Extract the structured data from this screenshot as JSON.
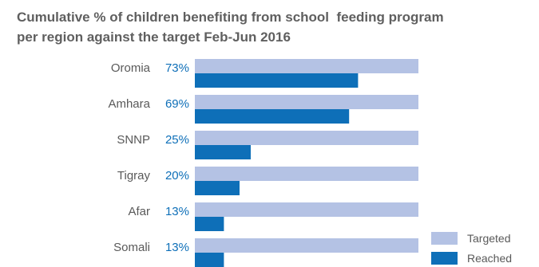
{
  "chart_data": {
    "type": "bar",
    "orientation": "horizontal",
    "title_lines": [
      "Cumulative % of children benefiting from school  feeding program",
      "per region against the target Feb-Jun 2016"
    ],
    "categories": [
      "Oromia",
      "Amhara",
      "SNNP",
      "Tigray",
      "Afar",
      "Somali"
    ],
    "percent_labels": [
      "73%",
      "69%",
      "25%",
      "20%",
      "13%",
      "13%"
    ],
    "series": [
      {
        "name": "Targeted",
        "values": [
          100,
          100,
          100,
          100,
          100,
          100
        ],
        "color": "#b4c2e4"
      },
      {
        "name": "Reached",
        "values": [
          73,
          69,
          25,
          20,
          13,
          13
        ],
        "color": "#0e6fb8"
      }
    ],
    "xlim": [
      0,
      100
    ],
    "grid": false,
    "legend": {
      "position": "bottom-right",
      "entries": [
        "Targeted",
        "Reached"
      ]
    }
  }
}
